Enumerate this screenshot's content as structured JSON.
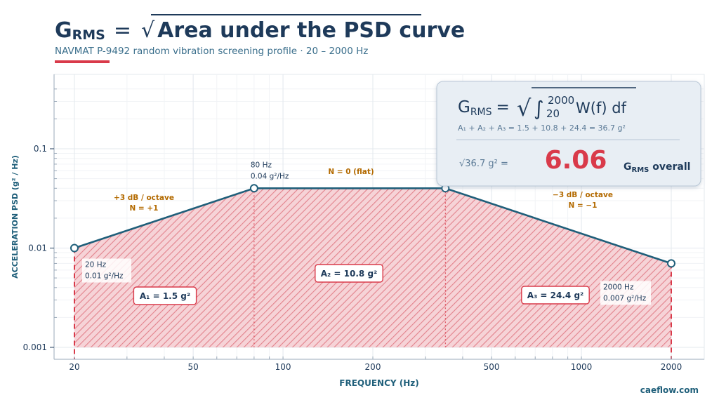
{
  "header": {
    "title_prefix": "G",
    "title_sub": "RMS",
    "title_equals": "=",
    "title_root": "√",
    "title_expr": "Area under the PSD curve",
    "subtitle": "NAVMAT P-9492 random vibration screening profile · 20 – 2000 Hz"
  },
  "formula_box": {
    "lhs_g": "G",
    "lhs_sub": "RMS",
    "eq": "=",
    "root": "√",
    "integral": "∫",
    "upper": "2000",
    "lower": "20",
    "integrand": "W(f) df",
    "sum_line": "A₁ + A₂ + A₃ = 1.5 + 10.8 + 24.4 = 36.7 g²",
    "result_expr": "√36.7 g² =",
    "result_value": "6.06",
    "result_label_g": "G",
    "result_label_sub": "RMS",
    "result_label_rest": " overall"
  },
  "footer": {
    "credit": "caeflow.com"
  },
  "colors": {
    "navy": "#1e3a5a",
    "teal": "#1f5f7a",
    "red": "#d93a4a",
    "orange": "#b36a00",
    "fill": "#f4c6cb",
    "hatch": "#e2828c"
  },
  "chart_data": {
    "type": "area",
    "xscale": "log",
    "yscale": "log",
    "xlim": [
      20,
      2000
    ],
    "ylim": [
      0.001,
      0.1
    ],
    "xlabel": "FREQUENCY (Hz)",
    "ylabel": "ACCELERATION PSD (g² / Hz)",
    "xticks": [
      20,
      50,
      100,
      200,
      500,
      1000,
      2000
    ],
    "xtick_labels": [
      "20",
      "50",
      "100",
      "200",
      "500",
      "1000",
      "2000"
    ],
    "yticks": [
      0.001,
      0.01,
      0.1
    ],
    "ytick_labels": [
      "0.001",
      "0.01",
      "0.1"
    ],
    "grid": true,
    "series": [
      {
        "x": [
          20,
          80,
          350,
          2000
        ],
        "y": [
          0.01,
          0.04,
          0.04,
          0.007
        ]
      }
    ],
    "points": [
      {
        "x": 20,
        "y": 0.01,
        "label1": "20 Hz",
        "label2": "0.01 g²/Hz"
      },
      {
        "x": 80,
        "y": 0.04,
        "label1": "80 Hz",
        "label2": "0.04 g²/Hz"
      },
      {
        "x": 350,
        "y": 0.04
      },
      {
        "x": 2000,
        "y": 0.007,
        "label1": "2000 Hz",
        "label2": "0.007 g²/Hz"
      }
    ],
    "segments": [
      {
        "slope_label": "+3 dB / octave",
        "n_label": "N = +1"
      },
      {
        "slope_label": "N = 0 (flat)"
      },
      {
        "slope_label": "−3 dB / octave",
        "n_label": "N = −1"
      }
    ],
    "areas": [
      {
        "label": "A₁ = 1.5 g²",
        "value": 1.5
      },
      {
        "label": "A₂ = 10.8 g²",
        "value": 10.8
      },
      {
        "label": "A₃ = 24.4 g²",
        "value": 24.4
      }
    ]
  }
}
